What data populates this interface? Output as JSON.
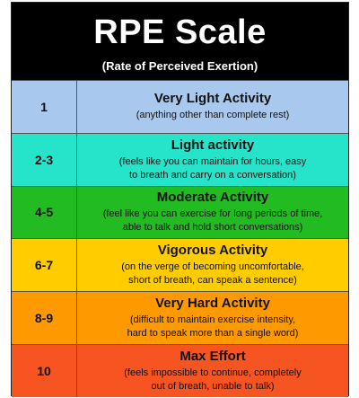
{
  "header": {
    "title": "RPE Scale",
    "subtitle": "(Rate of Perceived Exertion)"
  },
  "rows": [
    {
      "level": "1",
      "activity": "Very Light Activity",
      "detail": "(anything other than complete rest)",
      "color": "#a8c9ed"
    },
    {
      "level": "2-3",
      "activity": "Light activity",
      "detail": "(feels like you can maintain for hours, easy\nto breath and carry on a conversation)",
      "color": "#26e4c9"
    },
    {
      "level": "4-5",
      "activity": "Moderate Activity",
      "detail": "(feel like you can exercise for long periods of time,\nable to talk and hold short conversations)",
      "color": "#22bb22"
    },
    {
      "level": "6-7",
      "activity": "Vigorous Activity",
      "detail": "(on the verge of becoming uncomfortable,\nshort of breath, can speak a sentence)",
      "color": "#ffcc00"
    },
    {
      "level": "8-9",
      "activity": "Very Hard Activity",
      "detail": "(difficult to maintain exercise intensity,\nhard to speak more than a single word)",
      "color": "#ff9900"
    },
    {
      "level": "10",
      "activity": "Max Effort",
      "detail": "(feels impossible to continue, completely\nout of breath, unable to talk)",
      "color": "#f65421"
    }
  ]
}
